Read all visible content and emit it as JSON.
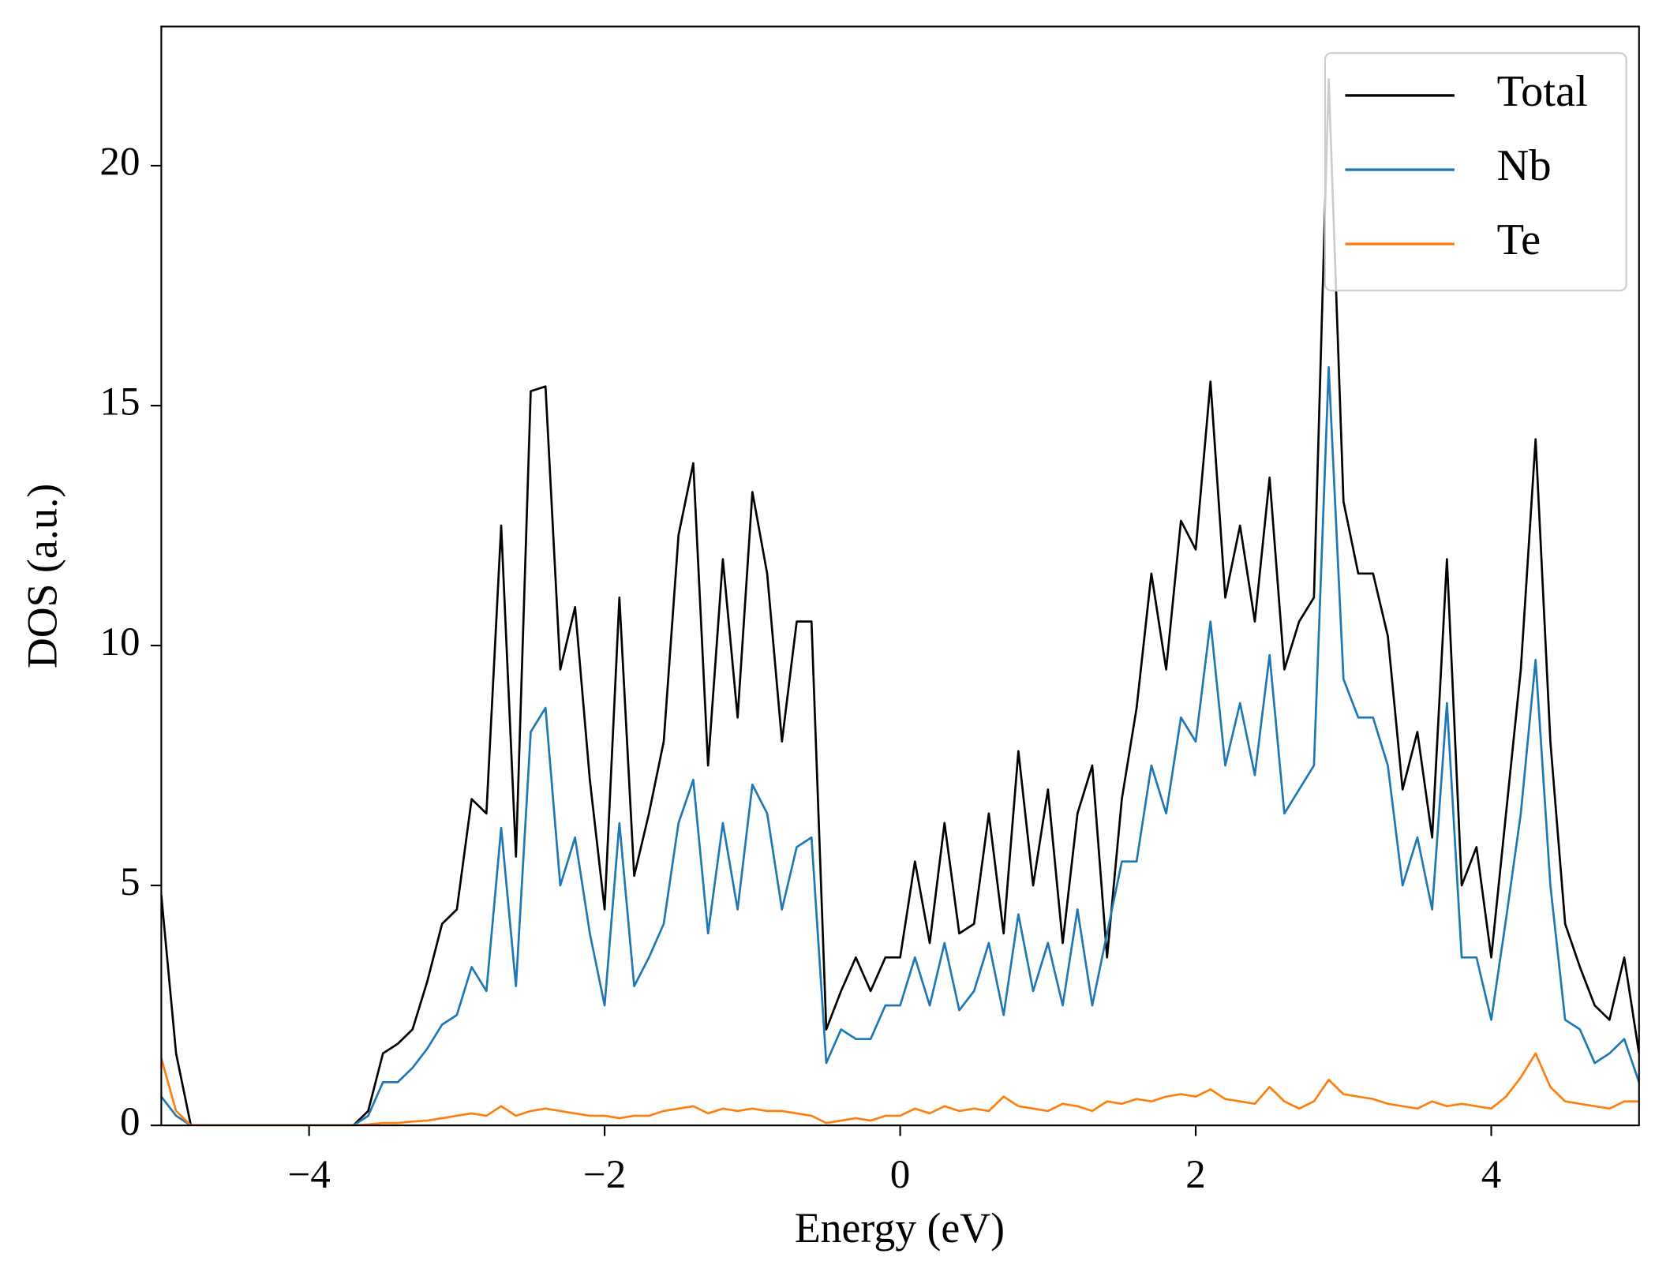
{
  "chart_data": {
    "type": "line",
    "xlabel": "Energy (eV)",
    "ylabel": "DOS (a.u.)",
    "x": [
      -5.0,
      -4.9,
      -4.8,
      -4.7,
      -4.6,
      -4.5,
      -4.4,
      -4.3,
      -4.2,
      -4.1,
      -4.0,
      -3.9,
      -3.8,
      -3.7,
      -3.6,
      -3.5,
      -3.4,
      -3.3,
      -3.2,
      -3.1,
      -3.0,
      -2.9,
      -2.8,
      -2.7,
      -2.6,
      -2.5,
      -2.4,
      -2.3,
      -2.2,
      -2.1,
      -2.0,
      -1.9,
      -1.8,
      -1.7,
      -1.6,
      -1.5,
      -1.4,
      -1.3,
      -1.2,
      -1.1,
      -1.0,
      -0.9,
      -0.8,
      -0.7,
      -0.6,
      -0.5,
      -0.4,
      -0.3,
      -0.2,
      -0.1,
      0.0,
      0.1,
      0.2,
      0.3,
      0.4,
      0.5,
      0.6,
      0.7,
      0.8,
      0.9,
      1.0,
      1.1,
      1.2,
      1.3,
      1.4,
      1.5,
      1.6,
      1.7,
      1.8,
      1.9,
      2.0,
      2.1,
      2.2,
      2.3,
      2.4,
      2.5,
      2.6,
      2.7,
      2.8,
      2.9,
      3.0,
      3.1,
      3.2,
      3.3,
      3.4,
      3.5,
      3.6,
      3.7,
      3.8,
      3.9,
      4.0,
      4.1,
      4.2,
      4.3,
      4.4,
      4.5,
      4.6,
      4.7,
      4.8,
      4.9,
      5.0
    ],
    "series": [
      {
        "name": "Total",
        "color": "#000000",
        "values": [
          4.8,
          1.5,
          0,
          0,
          0,
          0,
          0,
          0,
          0,
          0,
          0,
          0,
          0,
          0,
          0.3,
          1.5,
          1.7,
          2.0,
          3.0,
          4.2,
          4.5,
          6.8,
          6.5,
          12.5,
          5.6,
          15.3,
          15.4,
          9.5,
          10.8,
          7.2,
          4.5,
          11,
          5.2,
          6.5,
          8,
          12.3,
          13.8,
          7.5,
          11.8,
          8.5,
          13.2,
          11.5,
          8,
          10.5,
          10.5,
          2.0,
          2.8,
          3.5,
          2.8,
          3.5,
          3.5,
          5.5,
          3.8,
          6.3,
          4.0,
          4.2,
          6.5,
          4.0,
          7.8,
          5.0,
          7.0,
          3.8,
          6.5,
          7.5,
          3.5,
          6.8,
          8.7,
          11.5,
          9.5,
          12.6,
          12.0,
          15.5,
          11,
          12.5,
          10.5,
          13.5,
          9.5,
          10.5,
          11,
          21.8,
          13.0,
          11.5,
          11.5,
          10.2,
          7.0,
          8.2,
          6.0,
          11.8,
          5.0,
          5.8,
          3.5,
          6.5,
          9.5,
          14.3,
          8,
          4.2,
          3.3,
          2.5,
          2.2,
          3.5,
          1.5
        ]
      },
      {
        "name": "Nb",
        "color": "#1f77b4",
        "values": [
          0.6,
          0.2,
          0,
          0,
          0,
          0,
          0,
          0,
          0,
          0,
          0,
          0,
          0,
          0,
          0.2,
          0.9,
          0.9,
          1.2,
          1.6,
          2.1,
          2.3,
          3.3,
          2.8,
          6.2,
          2.9,
          8.2,
          8.7,
          5.0,
          6.0,
          4.0,
          2.5,
          6.3,
          2.9,
          3.5,
          4.2,
          6.3,
          7.2,
          4.0,
          6.3,
          4.5,
          7.1,
          6.5,
          4.5,
          5.8,
          6.0,
          1.3,
          2.0,
          1.8,
          1.8,
          2.5,
          2.5,
          3.5,
          2.5,
          3.8,
          2.4,
          2.8,
          3.8,
          2.3,
          4.4,
          2.8,
          3.8,
          2.5,
          4.5,
          2.5,
          4.0,
          5.5,
          5.5,
          7.5,
          6.5,
          8.5,
          8.0,
          10.5,
          7.5,
          8.8,
          7.3,
          9.8,
          6.5,
          7.0,
          7.5,
          15.8,
          9.3,
          8.5,
          8.5,
          7.5,
          5.0,
          6.0,
          4.5,
          8.8,
          3.5,
          3.5,
          2.2,
          4.3,
          6.5,
          9.7,
          5.0,
          2.2,
          2.0,
          1.3,
          1.5,
          1.8,
          0.9
        ]
      },
      {
        "name": "Te",
        "color": "#ff7f0e",
        "values": [
          1.4,
          0.3,
          0,
          0,
          0,
          0,
          0,
          0,
          0,
          0,
          0,
          0,
          0,
          0,
          0.02,
          0.05,
          0.05,
          0.08,
          0.1,
          0.15,
          0.2,
          0.25,
          0.2,
          0.4,
          0.2,
          0.3,
          0.35,
          0.3,
          0.25,
          0.2,
          0.2,
          0.15,
          0.2,
          0.2,
          0.3,
          0.35,
          0.4,
          0.25,
          0.35,
          0.3,
          0.35,
          0.3,
          0.3,
          0.25,
          0.2,
          0.05,
          0.1,
          0.15,
          0.1,
          0.2,
          0.2,
          0.35,
          0.25,
          0.4,
          0.3,
          0.35,
          0.3,
          0.6,
          0.4,
          0.35,
          0.3,
          0.45,
          0.4,
          0.3,
          0.5,
          0.45,
          0.55,
          0.5,
          0.6,
          0.65,
          0.6,
          0.75,
          0.55,
          0.5,
          0.45,
          0.8,
          0.5,
          0.35,
          0.5,
          0.95,
          0.65,
          0.6,
          0.55,
          0.45,
          0.4,
          0.35,
          0.5,
          0.4,
          0.45,
          0.4,
          0.35,
          0.6,
          1.0,
          1.5,
          0.8,
          0.5,
          0.45,
          0.4,
          0.35,
          0.5,
          0.5
        ]
      }
    ],
    "xlim": [
      -5,
      5
    ],
    "ylim": [
      0,
      22.9
    ],
    "xticks": [
      {
        "value": -4,
        "label": "−4"
      },
      {
        "value": -2,
        "label": "−2"
      },
      0,
      2,
      4
    ],
    "yticks": [
      0,
      5,
      10,
      15,
      20
    ],
    "legend": "upper right",
    "grid": false
  }
}
